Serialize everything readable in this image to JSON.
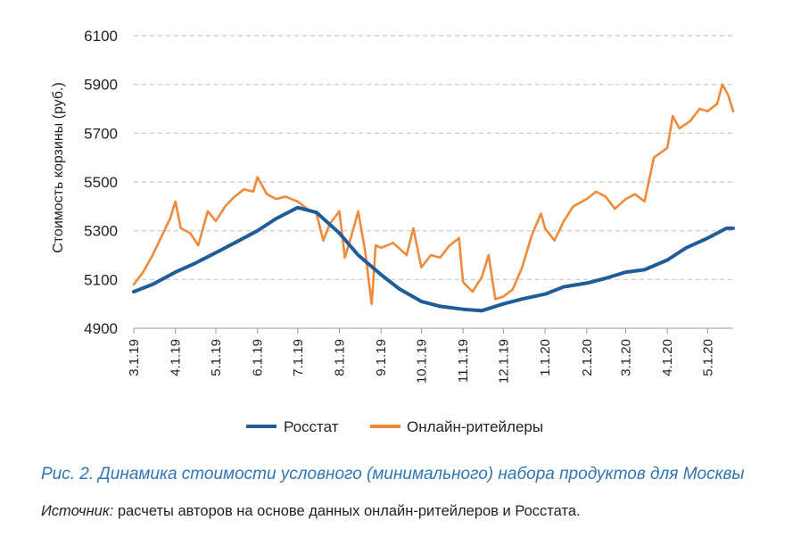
{
  "caption": "Рис. 2. Динамика стоимости условного (минимального) набора продуктов для Москвы",
  "source": {
    "label": "Источник:",
    "text": " расчеты авторов на основе данных онлайн-ритейлеров и Росстата."
  },
  "chart_data": {
    "type": "line",
    "ylabel": "Стоимость корзины (руб.)",
    "ylim": [
      4900,
      6100
    ],
    "yticks": [
      4900,
      5100,
      5300,
      5500,
      5700,
      5900,
      6100
    ],
    "xticks": [
      "3.1.19",
      "4.1.19",
      "5.1.19",
      "6.1.19",
      "7.1.19",
      "8.1.19",
      "9.1.19",
      "10.1.19",
      "11.1.19",
      "12.1.19",
      "1.1.20",
      "2.1.20",
      "3.1.20",
      "4.1.20",
      "5.1.20"
    ],
    "xlim": [
      "3.1.19",
      "5.20.20"
    ],
    "grid": "horizontal-dashed",
    "legend": "bottom",
    "series": [
      {
        "name": "Росстат",
        "color": "#1f5c99",
        "points": [
          [
            "3.1.19",
            5050
          ],
          [
            "3.15.19",
            5080
          ],
          [
            "4.1.19",
            5130
          ],
          [
            "4.15.19",
            5165
          ],
          [
            "5.1.19",
            5210
          ],
          [
            "5.15.19",
            5250
          ],
          [
            "6.1.19",
            5300
          ],
          [
            "6.15.19",
            5350
          ],
          [
            "7.1.19",
            5395
          ],
          [
            "7.15.19",
            5375
          ],
          [
            "8.1.19",
            5290
          ],
          [
            "8.15.19",
            5200
          ],
          [
            "9.1.19",
            5120
          ],
          [
            "9.15.19",
            5060
          ],
          [
            "10.1.19",
            5010
          ],
          [
            "10.15.19",
            4990
          ],
          [
            "11.1.19",
            4978
          ],
          [
            "11.15.19",
            4972
          ],
          [
            "12.1.19",
            5000
          ],
          [
            "12.15.19",
            5020
          ],
          [
            "1.1.20",
            5040
          ],
          [
            "1.15.20",
            5070
          ],
          [
            "2.1.20",
            5085
          ],
          [
            "2.15.20",
            5105
          ],
          [
            "3.1.20",
            5130
          ],
          [
            "3.15.20",
            5140
          ],
          [
            "4.1.20",
            5180
          ],
          [
            "4.15.20",
            5230
          ],
          [
            "5.1.20",
            5270
          ],
          [
            "5.15.20",
            5310
          ],
          [
            "5.20.20",
            5310
          ]
        ]
      },
      {
        "name": "Онлайн-ритейлеры",
        "color": "#f08a3a",
        "points": [
          [
            "3.1.19",
            5080
          ],
          [
            "3.8.19",
            5130
          ],
          [
            "3.15.19",
            5200
          ],
          [
            "3.22.19",
            5280
          ],
          [
            "3.28.19",
            5350
          ],
          [
            "4.1.19",
            5420
          ],
          [
            "4.5.19",
            5310
          ],
          [
            "4.12.19",
            5290
          ],
          [
            "4.18.19",
            5240
          ],
          [
            "4.25.19",
            5380
          ],
          [
            "5.1.19",
            5340
          ],
          [
            "5.8.19",
            5400
          ],
          [
            "5.15.19",
            5440
          ],
          [
            "5.22.19",
            5470
          ],
          [
            "5.29.19",
            5460
          ],
          [
            "6.1.19",
            5520
          ],
          [
            "6.8.19",
            5450
          ],
          [
            "6.15.19",
            5430
          ],
          [
            "6.22.19",
            5440
          ],
          [
            "7.1.19",
            5420
          ],
          [
            "7.8.19",
            5390
          ],
          [
            "7.15.19",
            5370
          ],
          [
            "7.20.19",
            5260
          ],
          [
            "7.25.19",
            5330
          ],
          [
            "8.1.19",
            5380
          ],
          [
            "8.5.19",
            5190
          ],
          [
            "8.10.19",
            5280
          ],
          [
            "8.15.19",
            5380
          ],
          [
            "8.20.19",
            5220
          ],
          [
            "8.25.19",
            5000
          ],
          [
            "8.28.19",
            5240
          ],
          [
            "9.1.19",
            5230
          ],
          [
            "9.10.19",
            5250
          ],
          [
            "9.20.19",
            5200
          ],
          [
            "9.25.19",
            5310
          ],
          [
            "10.1.19",
            5150
          ],
          [
            "10.8.19",
            5200
          ],
          [
            "10.15.19",
            5190
          ],
          [
            "10.22.19",
            5240
          ],
          [
            "10.29.19",
            5270
          ],
          [
            "11.1.19",
            5090
          ],
          [
            "11.8.19",
            5050
          ],
          [
            "11.15.19",
            5110
          ],
          [
            "11.20.19",
            5200
          ],
          [
            "11.25.19",
            5020
          ],
          [
            "12.1.19",
            5030
          ],
          [
            "12.8.19",
            5060
          ],
          [
            "12.15.19",
            5150
          ],
          [
            "12.22.19",
            5280
          ],
          [
            "12.29.19",
            5370
          ],
          [
            "1.1.20",
            5310
          ],
          [
            "1.8.20",
            5260
          ],
          [
            "1.15.20",
            5340
          ],
          [
            "1.22.20",
            5400
          ],
          [
            "2.1.20",
            5430
          ],
          [
            "2.8.20",
            5460
          ],
          [
            "2.15.20",
            5440
          ],
          [
            "2.22.20",
            5390
          ],
          [
            "3.1.20",
            5430
          ],
          [
            "3.8.20",
            5450
          ],
          [
            "3.15.20",
            5420
          ],
          [
            "3.22.20",
            5600
          ],
          [
            "4.1.20",
            5640
          ],
          [
            "4.5.20",
            5770
          ],
          [
            "4.10.20",
            5720
          ],
          [
            "4.18.20",
            5750
          ],
          [
            "4.25.20",
            5800
          ],
          [
            "5.1.20",
            5790
          ],
          [
            "5.8.20",
            5820
          ],
          [
            "5.12.20",
            5900
          ],
          [
            "5.16.20",
            5860
          ],
          [
            "5.20.20",
            5790
          ]
        ]
      }
    ]
  }
}
